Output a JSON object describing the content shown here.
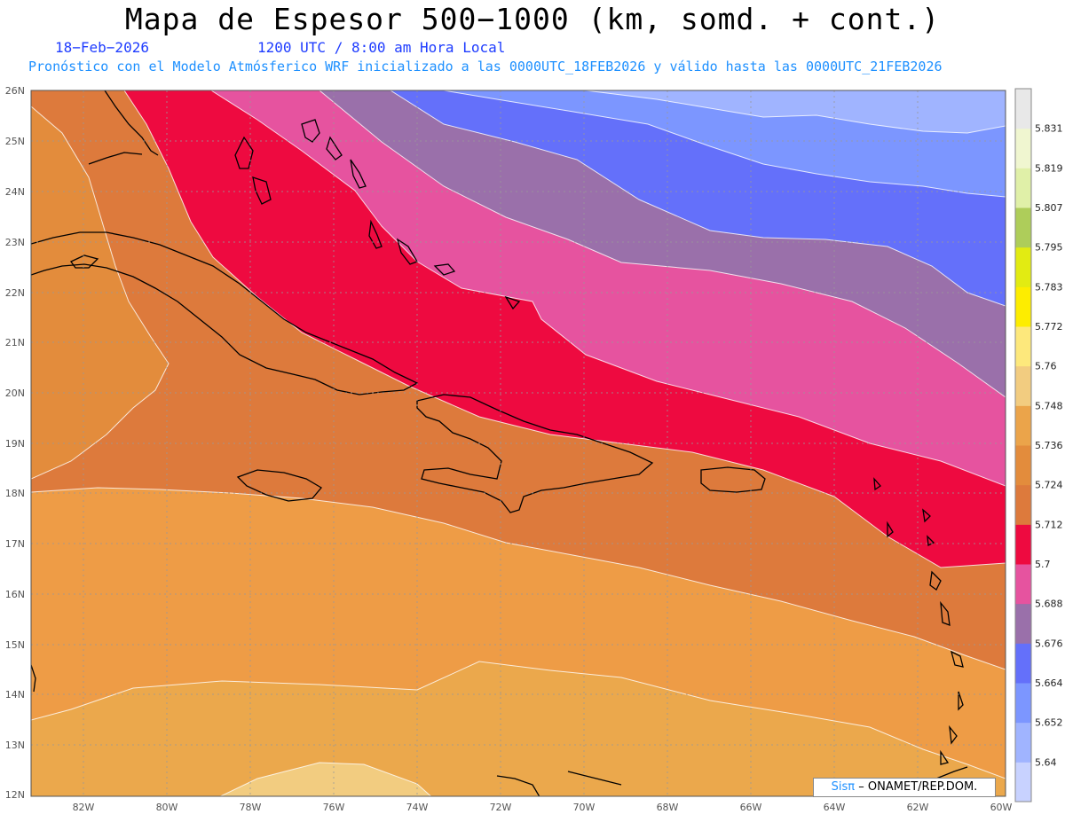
{
  "header": {
    "title": "Mapa de Espesor 500−1000 (km, somd. + cont.)",
    "date": "18−Feb−2026",
    "time": "1200 UTC / 8:00 am Hora Local",
    "subtitle": "Pronóstico con el Modelo Atmósferico WRF inicializado a las 0000UTC_18FEB2026 y válido hasta las  0000UTC_21FEB2026"
  },
  "map": {
    "lon_labels": [
      "82W",
      "80W",
      "78W",
      "76W",
      "74W",
      "72W",
      "70W",
      "68W",
      "66W",
      "64W",
      "62W",
      "60W"
    ],
    "lat_labels": [
      "26N",
      "25N",
      "24N",
      "23N",
      "22N",
      "21N",
      "20N",
      "19N",
      "18N",
      "17N",
      "16N",
      "15N",
      "14N",
      "13N",
      "12N"
    ],
    "lon_range": [
      -83.2,
      -60
    ],
    "lat_range": [
      12,
      26
    ],
    "grid": true
  },
  "colorbar": {
    "labels": [
      "5.64",
      "5.652",
      "5.664",
      "5.676",
      "5.688",
      "5.7",
      "5.712",
      "5.724",
      "5.736",
      "5.748",
      "5.76",
      "5.772",
      "5.783",
      "5.795",
      "5.807",
      "5.819",
      "5.831"
    ],
    "colors": [
      "#c8d2ff",
      "#a0b4ff",
      "#7c96ff",
      "#6470fa",
      "#9a70aa",
      "#e6539f",
      "#ee0a40",
      "#dd7a3c",
      "#e38c3c",
      "#eba44a",
      "#f2cc80",
      "#fde87c",
      "#fded00",
      "#e2eb12",
      "#aecd5a",
      "#e0f0a8",
      "#f0f6d0",
      "#e8e8e8"
    ]
  },
  "credit": {
    "logo": "Sisπ",
    "text": "– ONAMET/REP.DOM."
  }
}
